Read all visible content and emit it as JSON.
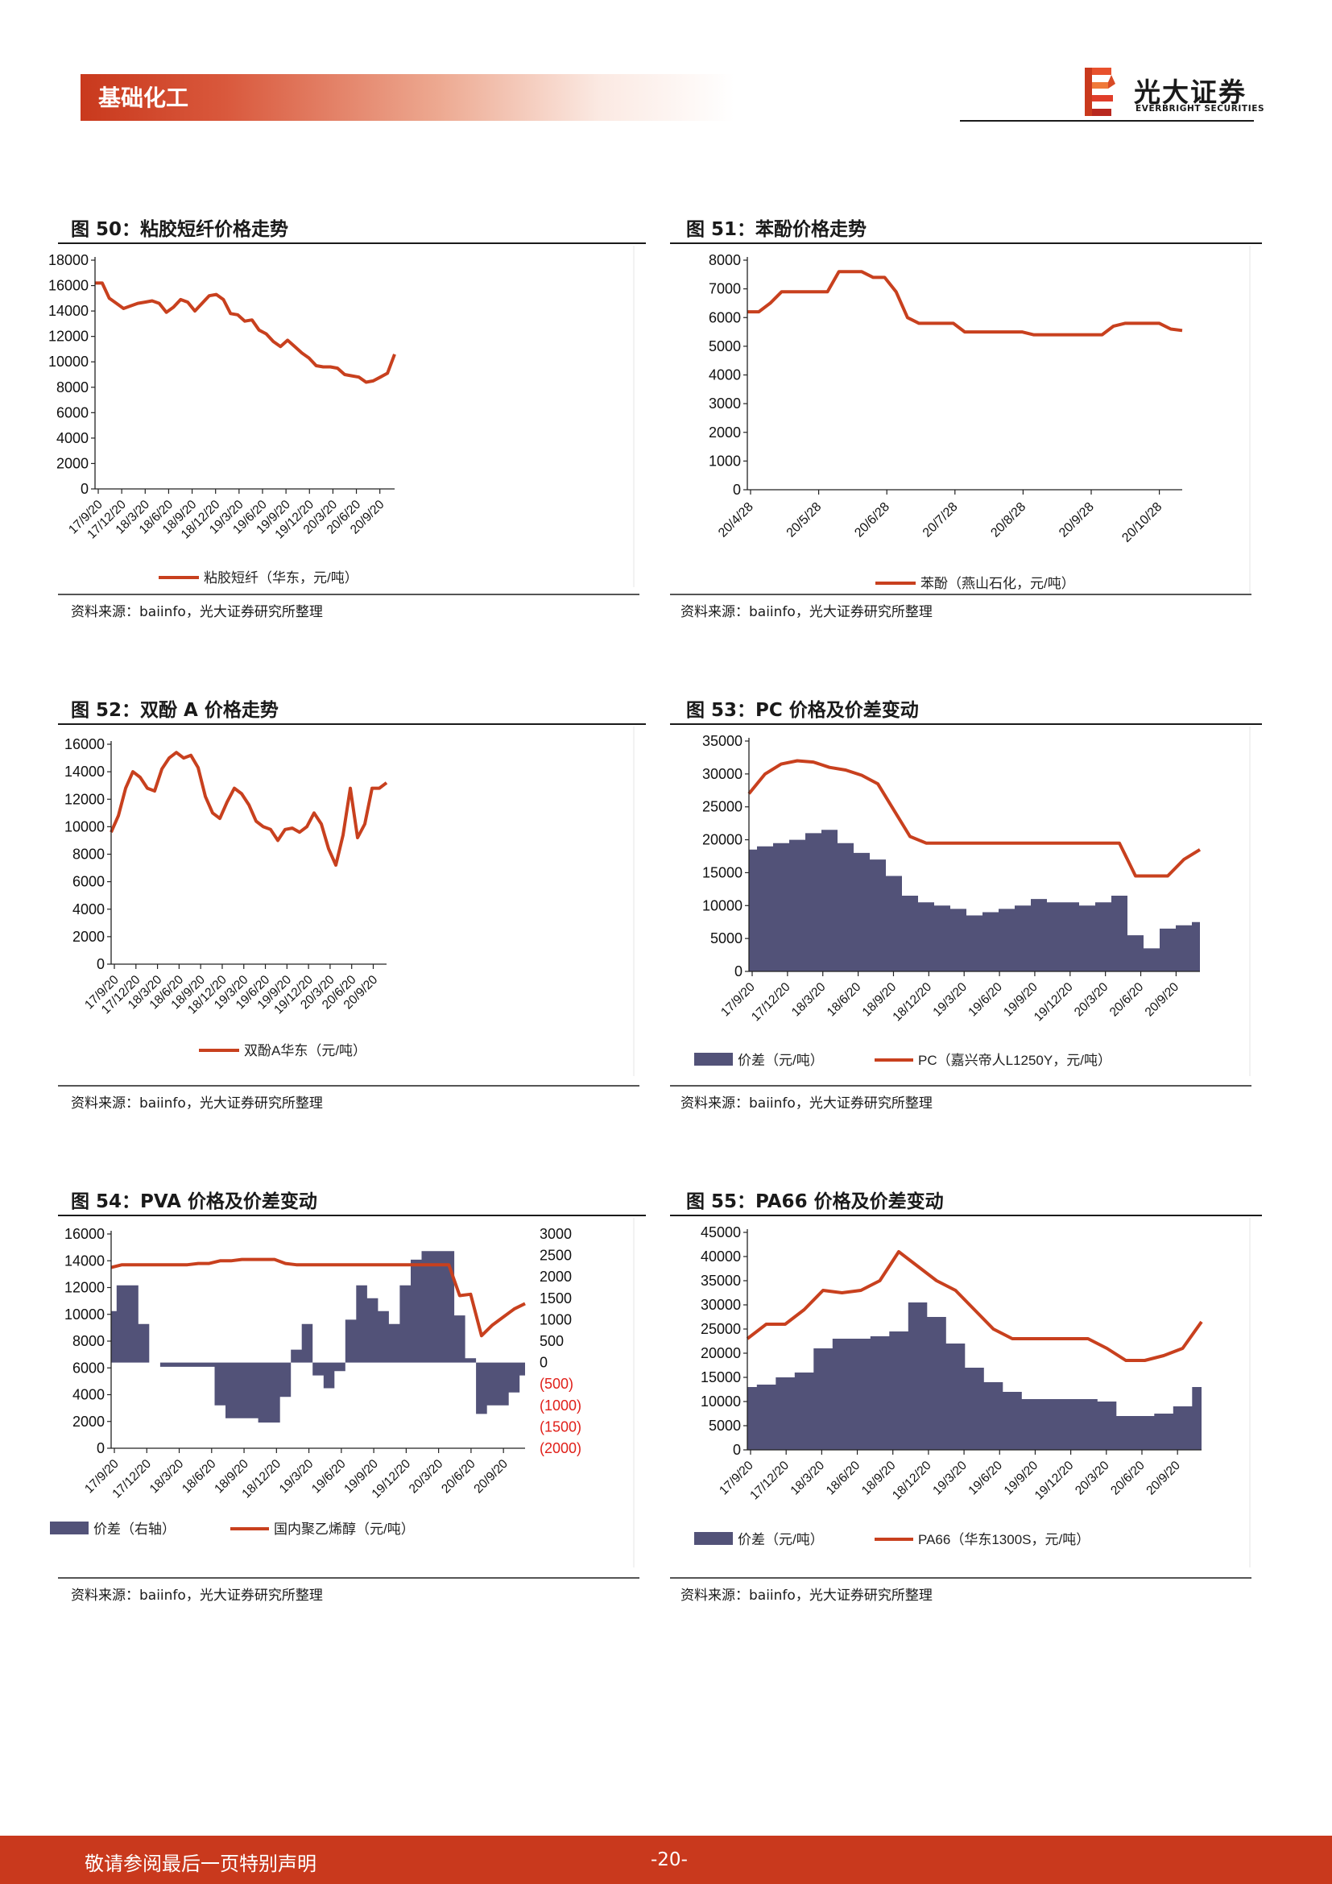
{
  "header": {
    "section": "基础化工",
    "brand_cn": "光大证券",
    "brand_en": "EVERBRIGHT SECURITIES"
  },
  "figures": [
    {
      "title": "图 50：粘胶短纤价格走势",
      "source": "资料来源：baiinfo，光大证券研究所整理"
    },
    {
      "title": "图 51：苯酚价格走势",
      "source": "资料来源：baiinfo，光大证券研究所整理"
    },
    {
      "title": "图 52：双酚 A 价格走势",
      "source": "资料来源：baiinfo，光大证券研究所整理"
    },
    {
      "title": "图 53：PC 价格及价差变动",
      "source": "资料来源：baiinfo，光大证券研究所整理"
    },
    {
      "title": "图 54：PVA 价格及价差变动",
      "source": "资料来源：baiinfo，光大证券研究所整理"
    },
    {
      "title": "图 55：PA66 价格及价差变动",
      "source": "资料来源：baiinfo，光大证券研究所整理"
    }
  ],
  "colors": {
    "line": "#c8401e",
    "area": "#525278",
    "axis": "#222222",
    "neg_tick": "#e0201a",
    "header": "#c9391d"
  },
  "chart_data": [
    {
      "type": "line",
      "ylim": [
        0,
        18000
      ],
      "yticks": [
        0,
        2000,
        4000,
        6000,
        8000,
        10000,
        12000,
        14000,
        16000,
        18000
      ],
      "xticklabels": [
        "17/9/20",
        "17/12/20",
        "18/3/20",
        "18/6/20",
        "18/9/20",
        "18/12/20",
        "19/3/20",
        "19/6/20",
        "19/9/20",
        "19/12/20",
        "20/3/20",
        "20/6/20",
        "20/9/20"
      ],
      "legend_position": "bottom",
      "series": [
        {
          "name": "粘胶短纤（华东，元/吨）",
          "kind": "line",
          "values": [
            16200,
            16200,
            15000,
            14600,
            14200,
            14400,
            14600,
            14700,
            14800,
            14600,
            13900,
            14300,
            14900,
            14700,
            14000,
            14600,
            15200,
            15300,
            14900,
            13800,
            13700,
            13200,
            13300,
            12500,
            12200,
            11600,
            11200,
            11700,
            11200,
            10700,
            10300,
            9700,
            9600,
            9600,
            9500,
            9000,
            8900,
            8800,
            8400,
            8500,
            8800,
            9100,
            10600
          ]
        }
      ]
    },
    {
      "type": "line",
      "ylim": [
        0,
        8000
      ],
      "yticks": [
        0,
        1000,
        2000,
        3000,
        4000,
        5000,
        6000,
        7000,
        8000
      ],
      "xticklabels": [
        "20/4/28",
        "20/5/28",
        "20/6/28",
        "20/7/28",
        "20/8/28",
        "20/9/28",
        "20/10/28"
      ],
      "legend_position": "bottom",
      "series": [
        {
          "name": "苯酚（燕山石化，元/吨）",
          "kind": "line",
          "values": [
            6200,
            6200,
            6500,
            6900,
            6900,
            6900,
            6900,
            6900,
            7600,
            7600,
            7600,
            7400,
            7400,
            6900,
            6000,
            5800,
            5800,
            5800,
            5800,
            5500,
            5500,
            5500,
            5500,
            5500,
            5500,
            5400,
            5400,
            5400,
            5400,
            5400,
            5400,
            5400,
            5700,
            5800,
            5800,
            5800,
            5800,
            5600,
            5550
          ]
        }
      ]
    },
    {
      "type": "line",
      "ylim": [
        0,
        16000
      ],
      "yticks": [
        0,
        2000,
        4000,
        6000,
        8000,
        10000,
        12000,
        14000,
        16000
      ],
      "xticklabels": [
        "17/9/20",
        "17/12/20",
        "18/3/20",
        "18/6/20",
        "18/9/20",
        "18/12/20",
        "19/3/20",
        "19/6/20",
        "19/9/20",
        "19/12/20",
        "20/3/20",
        "20/6/20",
        "20/9/20"
      ],
      "legend_position": "bottom",
      "series": [
        {
          "name": "双酚A华东（元/吨）",
          "kind": "line",
          "values": [
            9600,
            10800,
            12800,
            14000,
            13600,
            12800,
            12600,
            14200,
            15000,
            15400,
            15000,
            15200,
            14300,
            12200,
            11000,
            10600,
            11800,
            12800,
            12400,
            11600,
            10400,
            10000,
            9800,
            9000,
            9800,
            9900,
            9600,
            10000,
            11000,
            10200,
            8400,
            7200,
            9400,
            12800,
            9200,
            10200,
            12800,
            12800,
            13200
          ]
        }
      ]
    },
    {
      "type": "area",
      "ylim": [
        0,
        35000
      ],
      "yticks": [
        0,
        5000,
        10000,
        15000,
        20000,
        25000,
        30000,
        35000
      ],
      "xticklabels": [
        "17/9/20",
        "17/12/20",
        "18/3/20",
        "18/6/20",
        "18/9/20",
        "18/12/20",
        "19/3/20",
        "19/6/20",
        "19/9/20",
        "19/12/20",
        "20/3/20",
        "20/6/20",
        "20/9/20"
      ],
      "legend_position": "bottom",
      "series": [
        {
          "name": "价差（元/吨）",
          "kind": "area",
          "values": [
            18500,
            19000,
            19500,
            20000,
            21000,
            21500,
            19500,
            18000,
            17000,
            14500,
            11500,
            10500,
            10000,
            9500,
            8500,
            9000,
            9500,
            10000,
            11000,
            10500,
            10500,
            10000,
            10500,
            11500,
            5500,
            3500,
            6500,
            7000,
            7500
          ]
        },
        {
          "name": "PC（嘉兴帝人L1250Y，元/吨）",
          "kind": "line",
          "values": [
            27000,
            30000,
            31500,
            32000,
            31800,
            31000,
            30600,
            29800,
            28500,
            24500,
            20500,
            19500,
            19500,
            19500,
            19500,
            19500,
            19500,
            19500,
            19500,
            19500,
            19500,
            19500,
            19500,
            19500,
            14500,
            14500,
            14500,
            17000,
            18500
          ]
        }
      ]
    },
    {
      "type": "area",
      "ylim": [
        0,
        16000
      ],
      "yticks": [
        0,
        2000,
        4000,
        6000,
        8000,
        10000,
        12000,
        14000,
        16000
      ],
      "y2lim": [
        -2000,
        3000
      ],
      "y2ticklabels": [
        "(2000)",
        "(1500)",
        "(1000)",
        "(500)",
        "0",
        "500",
        "1000",
        "1500",
        "2000",
        "2500",
        "3000"
      ],
      "xticklabels": [
        "17/9/20",
        "17/12/20",
        "18/3/20",
        "18/6/20",
        "18/9/20",
        "18/12/20",
        "19/3/20",
        "19/6/20",
        "19/9/20",
        "19/12/20",
        "20/3/20",
        "20/6/20",
        "20/9/20"
      ],
      "legend_position": "bottom",
      "series": [
        {
          "name": "价差（右轴）",
          "axis": "right",
          "kind": "area",
          "values": [
            1200,
            1800,
            1800,
            900,
            0,
            -100,
            -100,
            -100,
            -100,
            -100,
            -1000,
            -1300,
            -1300,
            -1300,
            -1400,
            -1400,
            -800,
            300,
            900,
            -300,
            -600,
            -200,
            1000,
            1800,
            1500,
            1200,
            900,
            1800,
            2400,
            2600,
            2600,
            2600,
            1100,
            100,
            -1200,
            -1000,
            -1000,
            -700,
            -300
          ]
        },
        {
          "name": "国内聚乙烯醇（元/吨）",
          "axis": "left",
          "kind": "line",
          "values": [
            13500,
            13700,
            13700,
            13700,
            13700,
            13700,
            13700,
            13700,
            13800,
            13800,
            14000,
            14000,
            14100,
            14100,
            14100,
            14100,
            13800,
            13700,
            13700,
            13700,
            13700,
            13700,
            13700,
            13700,
            13700,
            13700,
            13700,
            13700,
            13700,
            13700,
            13700,
            13700,
            11400,
            11500,
            8400,
            9200,
            9800,
            10400,
            10800
          ]
        }
      ]
    },
    {
      "type": "area",
      "ylim": [
        0,
        45000
      ],
      "yticks": [
        0,
        5000,
        10000,
        15000,
        20000,
        25000,
        30000,
        35000,
        40000,
        45000
      ],
      "xticklabels": [
        "17/9/20",
        "17/12/20",
        "18/3/20",
        "18/6/20",
        "18/9/20",
        "18/12/20",
        "19/3/20",
        "19/6/20",
        "19/9/20",
        "19/12/20",
        "20/3/20",
        "20/6/20",
        "20/9/20"
      ],
      "legend_position": "bottom",
      "series": [
        {
          "name": "价差（元/吨）",
          "kind": "area",
          "values": [
            13000,
            13500,
            15000,
            16000,
            21000,
            23000,
            23000,
            23500,
            24500,
            30500,
            27500,
            22000,
            17000,
            14000,
            12000,
            10500,
            10500,
            10500,
            10500,
            10000,
            7000,
            7000,
            7500,
            9000,
            13000
          ]
        },
        {
          "name": "PA66（华东1300S，元/吨）",
          "kind": "line",
          "values": [
            23000,
            26000,
            26000,
            29000,
            33000,
            32500,
            33000,
            35000,
            41000,
            38000,
            35000,
            33000,
            29000,
            25000,
            23000,
            23000,
            23000,
            23000,
            23000,
            21000,
            18500,
            18500,
            19500,
            21000,
            26500
          ]
        }
      ]
    }
  ],
  "footer": {
    "disclaimer": "敬请参阅最后一页特别声明",
    "page": "-20-"
  }
}
